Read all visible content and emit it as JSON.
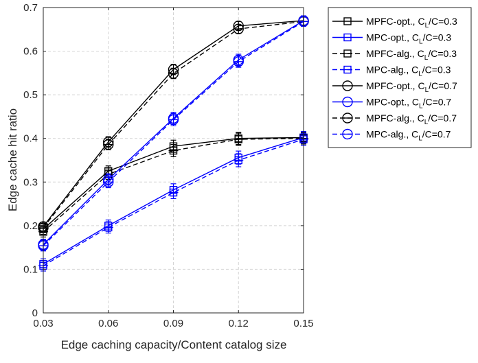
{
  "chart_data": {
    "type": "line",
    "title": "",
    "xlabel": "Edge caching capacity/Content catalog size",
    "ylabel": "Edge cache hit ratio",
    "x": [
      0.03,
      0.06,
      0.09,
      0.12,
      0.15
    ],
    "x_tick_labels": [
      "0.03",
      "0.06",
      "0.09",
      "0.12",
      "0.15"
    ],
    "xlim": [
      0.03,
      0.15
    ],
    "ylim": [
      0,
      0.7
    ],
    "y_ticks": [
      0,
      0.1,
      0.2,
      0.3,
      0.4,
      0.5,
      0.6,
      0.7
    ],
    "y_tick_labels": [
      "0",
      "0.1",
      "0.2",
      "0.3",
      "0.4",
      "0.5",
      "0.6",
      "0.7"
    ],
    "grid": true,
    "legend_position": "outside-right",
    "series": [
      {
        "name": "MPFC-opt., C_L/C=0.3",
        "legend_main": "MPFC-opt., C",
        "legend_sub": "L",
        "legend_tail": "/C=0.3",
        "color": "#000000",
        "line": "solid",
        "marker": "square",
        "values": [
          0.192,
          0.325,
          0.382,
          0.4,
          0.402
        ],
        "error": [
          0.012,
          0.012,
          0.014,
          0.014,
          0.013
        ]
      },
      {
        "name": "MPC-opt., C_L/C=0.3",
        "legend_main": "MPC-opt., C",
        "legend_sub": "L",
        "legend_tail": "/C=0.3",
        "color": "#0000ff",
        "line": "solid",
        "marker": "square",
        "values": [
          0.112,
          0.2,
          0.282,
          0.356,
          0.402
        ],
        "error": [
          0.012,
          0.013,
          0.014,
          0.015,
          0.014
        ]
      },
      {
        "name": "MPFC-alg., C_L/C=0.3",
        "legend_main": "MPFC-alg., C",
        "legend_sub": "L",
        "legend_tail": "/C=0.3",
        "color": "#000000",
        "line": "dashed",
        "marker": "square",
        "values": [
          0.186,
          0.318,
          0.372,
          0.398,
          0.4
        ],
        "error": [
          0.012,
          0.012,
          0.014,
          0.014,
          0.013
        ]
      },
      {
        "name": "MPC-alg., C_L/C=0.3",
        "legend_main": "MPC-alg., C",
        "legend_sub": "L",
        "legend_tail": "/C=0.3",
        "color": "#0000ff",
        "line": "dashed",
        "marker": "square",
        "values": [
          0.108,
          0.196,
          0.276,
          0.35,
          0.398
        ],
        "error": [
          0.012,
          0.013,
          0.014,
          0.015,
          0.014
        ]
      },
      {
        "name": "MPFC-opt., C_L/C=0.7",
        "legend_main": "MPFC-opt., C",
        "legend_sub": "L",
        "legend_tail": "/C=0.7",
        "color": "#000000",
        "line": "solid",
        "marker": "circle",
        "values": [
          0.198,
          0.392,
          0.558,
          0.658,
          0.67
        ],
        "error": [
          0.01,
          0.012,
          0.012,
          0.01,
          0.01
        ]
      },
      {
        "name": "MPC-opt., C_L/C=0.7",
        "legend_main": "MPC-opt., C",
        "legend_sub": "L",
        "legend_tail": "/C=0.7",
        "color": "#0000ff",
        "line": "solid",
        "marker": "circle",
        "values": [
          0.157,
          0.306,
          0.446,
          0.58,
          0.67
        ],
        "error": [
          0.012,
          0.013,
          0.014,
          0.013,
          0.011
        ]
      },
      {
        "name": "MPFC-alg., C_L/C=0.7",
        "legend_main": "MPFC-alg., C",
        "legend_sub": "L",
        "legend_tail": "/C=0.7",
        "color": "#000000",
        "line": "dashed",
        "marker": "circle",
        "values": [
          0.195,
          0.386,
          0.549,
          0.651,
          0.668
        ],
        "error": [
          0.01,
          0.012,
          0.012,
          0.01,
          0.01
        ]
      },
      {
        "name": "MPC-alg., C_L/C=0.7",
        "legend_main": "MPC-alg., C",
        "legend_sub": "L",
        "legend_tail": "/C=0.7",
        "color": "#0000ff",
        "line": "dashed",
        "marker": "circle",
        "values": [
          0.154,
          0.3,
          0.443,
          0.576,
          0.668
        ],
        "error": [
          0.012,
          0.013,
          0.014,
          0.013,
          0.011
        ]
      }
    ]
  }
}
